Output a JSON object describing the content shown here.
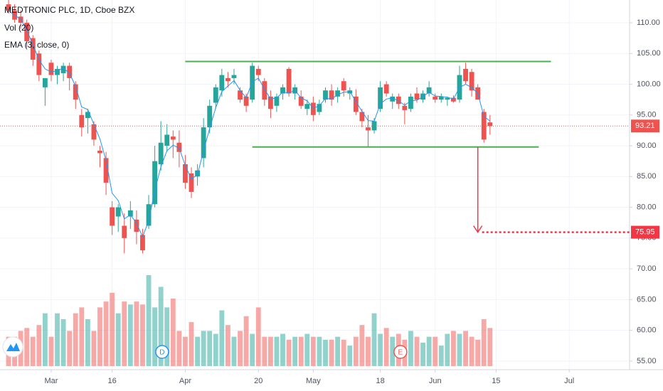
{
  "chart_data": {
    "type": "candlestick",
    "title": "MEDTRONIC PLC, 1D, Cboe BZX",
    "indicators": [
      "Vol (20)",
      "EMA (3, close, 0)"
    ],
    "up_color": "#26a69a",
    "down_color": "#ef5350",
    "ema_color": "#2196f3",
    "ohlc": [
      [
        113,
        114,
        111.5,
        112
      ],
      [
        112,
        113,
        110,
        110.5
      ],
      [
        111,
        112,
        109,
        110
      ],
      [
        110,
        110.5,
        106,
        107
      ],
      [
        107.5,
        108,
        103,
        104
      ],
      [
        105,
        105.5,
        100.5,
        101.5
      ],
      [
        99.5,
        101,
        96.5,
        101
      ],
      [
        103.5,
        104,
        100.5,
        101.5
      ],
      [
        101.5,
        103,
        100,
        102.5
      ],
      [
        101.8,
        103.5,
        100.5,
        103
      ],
      [
        103,
        103.5,
        99,
        101
      ],
      [
        100,
        100.5,
        96,
        97.5
      ],
      [
        95,
        96,
        91.5,
        93
      ],
      [
        94.5,
        96,
        92,
        95.5
      ],
      [
        93.5,
        94,
        90,
        91
      ],
      [
        89.2,
        90,
        86.5,
        88.8
      ],
      [
        88,
        89,
        82,
        84
      ],
      [
        80,
        81,
        75.5,
        77
      ],
      [
        78.5,
        80.5,
        76,
        80
      ],
      [
        77,
        79,
        72.5,
        75
      ],
      [
        78.5,
        81,
        76.5,
        79.5
      ],
      [
        78,
        79.5,
        74,
        76
      ],
      [
        75.5,
        76.5,
        72.5,
        73
      ],
      [
        77,
        82,
        76.5,
        80.5
      ],
      [
        80.5,
        90,
        80,
        87.5
      ],
      [
        87,
        94,
        86,
        90.5
      ],
      [
        90,
        93.5,
        89,
        91.8
      ],
      [
        91.5,
        92.5,
        88,
        91
      ],
      [
        90.5,
        92.5,
        86.5,
        89
      ],
      [
        87,
        88.5,
        83,
        84
      ],
      [
        85.5,
        86.5,
        81.5,
        82.5
      ],
      [
        85,
        87,
        83.5,
        86
      ],
      [
        88,
        94.5,
        86.5,
        93
      ],
      [
        93,
        97.5,
        92,
        96.5
      ],
      [
        97,
        100,
        96,
        99.5
      ],
      [
        99,
        102.5,
        98,
        101.5
      ],
      [
        101,
        102,
        99.5,
        100.5
      ],
      [
        101,
        102.5,
        100,
        101.5
      ],
      [
        99,
        99.5,
        97,
        97.5
      ],
      [
        98,
        98.5,
        95.5,
        96.5
      ],
      [
        97.5,
        103.5,
        97,
        103
      ],
      [
        102.5,
        103,
        100.5,
        101.5
      ],
      [
        100.5,
        101,
        96.5,
        97.5
      ],
      [
        98,
        99,
        94.5,
        96
      ],
      [
        96.5,
        98.5,
        95.5,
        98
      ],
      [
        98.5,
        100,
        97.5,
        99.5
      ],
      [
        102.5,
        102.8,
        98,
        98.5
      ],
      [
        98.5,
        100,
        97.5,
        99.5
      ],
      [
        98,
        99,
        96,
        96.5
      ],
      [
        96,
        97.5,
        95,
        96.8
      ],
      [
        97,
        98,
        94,
        95
      ],
      [
        95.5,
        97.5,
        95,
        96.8
      ],
      [
        97.5,
        99.5,
        97,
        99
      ],
      [
        99,
        100,
        96.5,
        97.5
      ],
      [
        98,
        99.5,
        97,
        99
      ],
      [
        100.5,
        101,
        98,
        99
      ],
      [
        98.5,
        99.5,
        97.5,
        99
      ],
      [
        98,
        99.2,
        95,
        95.5
      ],
      [
        95.5,
        96,
        93,
        94
      ],
      [
        93,
        95,
        89.8,
        92.5
      ],
      [
        92.5,
        94.5,
        92,
        94
      ],
      [
        96,
        100.5,
        95.5,
        99.5
      ],
      [
        100,
        100.5,
        98,
        98.5
      ],
      [
        97.2,
        98.5,
        96,
        98
      ],
      [
        98,
        98.5,
        96,
        96.8
      ],
      [
        96.5,
        97,
        93.5,
        95.8
      ],
      [
        96,
        98.5,
        95.5,
        98
      ],
      [
        98.5,
        99.5,
        97,
        97.5
      ],
      [
        97.5,
        99,
        97,
        98.5
      ],
      [
        98.5,
        100.5,
        98,
        99.5
      ],
      [
        98,
        98.5,
        97,
        97.5
      ],
      [
        97.5,
        98.5,
        97,
        98
      ],
      [
        97.5,
        98,
        96.5,
        97.8
      ],
      [
        97.8,
        98.2,
        97,
        97.2
      ],
      [
        97.5,
        103,
        97,
        101.5
      ],
      [
        102.5,
        103.5,
        100,
        100.5
      ],
      [
        102,
        102.5,
        98,
        99
      ],
      [
        99.5,
        100,
        97.5,
        97.5
      ],
      [
        95.5,
        96,
        90.5,
        91
      ],
      [
        93.8,
        95,
        91.8,
        93.21
      ]
    ],
    "volume": [
      5,
      5,
      6,
      6.5,
      5,
      7,
      9,
      5,
      9,
      8,
      6,
      9,
      10,
      8,
      6,
      10,
      11,
      12.5,
      9,
      11,
      10.5,
      11,
      10.5,
      15.5,
      10,
      13.5,
      10,
      11.5,
      6,
      5,
      7.5,
      5,
      6,
      6,
      5.5,
      9.5,
      7,
      5,
      6,
      8.5,
      5.5,
      10,
      5,
      5,
      5,
      5.5,
      4.5,
      5,
      5,
      5.5,
      5,
      5,
      4.5,
      4.5,
      5,
      4.5,
      3.5,
      5,
      7,
      5,
      9,
      5.5,
      6.5,
      5,
      5.5,
      4.5,
      6,
      5,
      4,
      5,
      5,
      3.5,
      5.5,
      6,
      5.5,
      6,
      5,
      4.5,
      8,
      6.5
    ],
    "ema": [
      112,
      111.2,
      110.6,
      108.8,
      106.4,
      104,
      102.5,
      102,
      102.2,
      102.6,
      101.8,
      99.7,
      96.3,
      95.9,
      93.5,
      91.1,
      87.6,
      82.3,
      81.1,
      78.1,
      78.8,
      77.4,
      75.2,
      77.8,
      82.7,
      86.6,
      89.2,
      90.1,
      89.6,
      86.8,
      84.6,
      85.3,
      89.2,
      92.8,
      96.2,
      98.8,
      99.7,
      100.6,
      99,
      97.8,
      100.4,
      101,
      99.2,
      97.6,
      97.8,
      98.7,
      98.6,
      99,
      97.8,
      97.3,
      96.1,
      96.5,
      97.7,
      97.6,
      98.3,
      98.7,
      98.8,
      97.2,
      95.6,
      94.1,
      94,
      96.8,
      97.6,
      97.8,
      97.3,
      96.6,
      97.3,
      97.4,
      98,
      98.7,
      98.1,
      98,
      97.9,
      97.6,
      99.5,
      100,
      99.5,
      98.5,
      94.8,
      94
    ],
    "ylim": [
      53.6,
      113.7
    ],
    "yticks": [
      {
        "value": 55,
        "label": "55.00"
      },
      {
        "value": 60,
        "label": "60.00"
      },
      {
        "value": 65,
        "label": "65.00"
      },
      {
        "value": 70,
        "label": "70.00"
      },
      {
        "value": 75,
        "label": "75.00"
      },
      {
        "value": 80,
        "label": "80.00"
      },
      {
        "value": 85,
        "label": "85.00"
      },
      {
        "value": 90,
        "label": "90.00"
      },
      {
        "value": 95,
        "label": "95.00"
      },
      {
        "value": 100,
        "label": "100.00"
      },
      {
        "value": 105,
        "label": "105.00"
      },
      {
        "value": 110,
        "label": "110.00"
      }
    ],
    "xlim": [
      -1.4,
      101.9
    ],
    "xticks": [
      {
        "value": 7,
        "label": "Mar"
      },
      {
        "value": 17,
        "label": "16"
      },
      {
        "value": 29,
        "label": "Apr"
      },
      {
        "value": 41,
        "label": "20"
      },
      {
        "value": 50,
        "label": "May"
      },
      {
        "value": 61,
        "label": "18"
      },
      {
        "value": 70,
        "label": "Jun"
      },
      {
        "value": 80,
        "label": "15"
      },
      {
        "value": 92,
        "label": "Jul"
      }
    ],
    "grid": true,
    "levels": [
      {
        "value": 103.7,
        "from": 29,
        "to": 89,
        "color": "#4caf50"
      },
      {
        "value": 89.8,
        "from": 40,
        "to": 87,
        "color": "#4caf50"
      }
    ],
    "projection": {
      "at": 77,
      "from": 89.8,
      "to": {
        "value": 75.95,
        "label": "75.95"
      },
      "color": "#f23645"
    },
    "last_price": {
      "value": 93.21,
      "label": "93.21"
    },
    "events": [
      {
        "label": "D",
        "at": 25.2,
        "color": "#2196f3"
      },
      {
        "label": "E",
        "at": 64.3,
        "color": "#ef5350"
      }
    ]
  }
}
